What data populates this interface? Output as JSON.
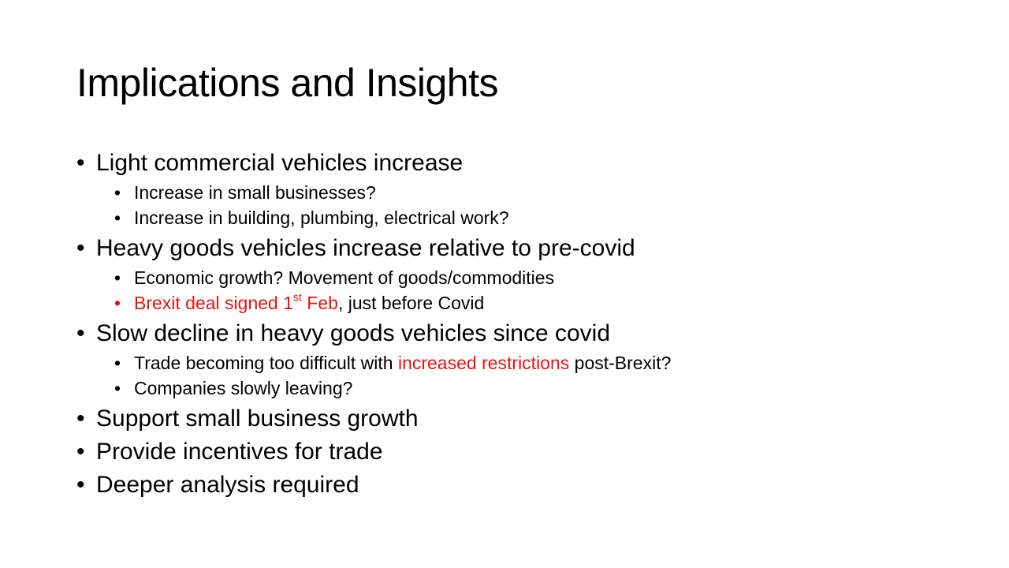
{
  "slide": {
    "title": "Implications and Insights",
    "bullets": [
      {
        "text": "Light commercial vehicles increase",
        "sub": [
          {
            "text": "Increase in small businesses?"
          },
          {
            "text": "Increase in building, plumbing, electrical work?"
          }
        ]
      },
      {
        "text": "Heavy goods vehicles increase relative to pre-covid",
        "sub": [
          {
            "text": "Economic growth? Movement of goods/commodities"
          },
          {
            "red_part_a": "Brexit deal signed 1",
            "red_sup": "st",
            "red_part_b": " Feb",
            "normal_part": ", just before Covid"
          }
        ]
      },
      {
        "text": "Slow decline in heavy goods vehicles since covid",
        "sub": [
          {
            "part_a": "Trade becoming too difficult with ",
            "red_part": "increased restrictions",
            "part_b": " post-Brexit?"
          },
          {
            "text": "Companies slowly leaving?"
          }
        ]
      },
      {
        "text": "Support small business growth"
      },
      {
        "text": "Provide incentives for trade"
      },
      {
        "text": "Deeper analysis required"
      }
    ],
    "bullet_char_main": "•",
    "bullet_char_sub": "•",
    "colors": {
      "text": "#000000",
      "highlight": "#ee1111",
      "background": "#ffffff"
    }
  }
}
